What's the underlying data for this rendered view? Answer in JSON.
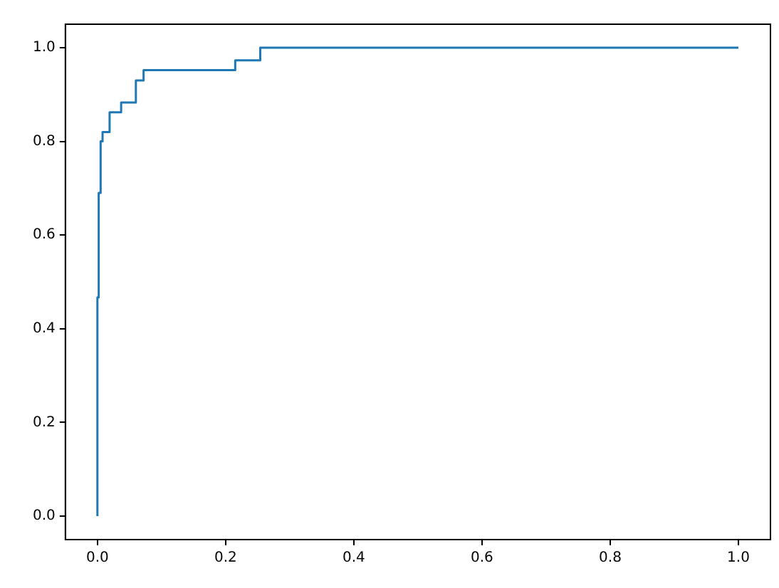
{
  "chart_data": {
    "type": "line",
    "x": [
      0,
      0,
      0.002,
      0.002,
      0.005,
      0.005,
      0.008,
      0.008,
      0.019,
      0.019,
      0.037,
      0.037,
      0.06,
      0.06,
      0.072,
      0.072,
      0.215,
      0.215,
      0.254,
      0.254,
      1
    ],
    "series": [
      {
        "color": "#1f77b4",
        "values": [
          0,
          0.467,
          0.467,
          0.69,
          0.69,
          0.8,
          0.8,
          0.82,
          0.82,
          0.862,
          0.862,
          0.883,
          0.883,
          0.93,
          0.93,
          0.952,
          0.952,
          0.973,
          0.973,
          1,
          1
        ]
      }
    ],
    "xlim": [
      -0.05,
      1.05
    ],
    "ylim": [
      -0.05,
      1.05
    ],
    "xticks": [
      {
        "value": 0,
        "label": "0.0"
      },
      {
        "value": 0.2,
        "label": "0.2"
      },
      {
        "value": 0.4,
        "label": "0.4"
      },
      {
        "value": 0.6,
        "label": "0.6"
      },
      {
        "value": 0.8,
        "label": "0.8"
      },
      {
        "value": 1,
        "label": "1.0"
      }
    ],
    "yticks": [
      {
        "value": 0,
        "label": "0.0"
      },
      {
        "value": 0.2,
        "label": "0.2"
      },
      {
        "value": 0.4,
        "label": "0.4"
      },
      {
        "value": 0.6,
        "label": "0.6"
      },
      {
        "value": 0.8,
        "label": "0.8"
      },
      {
        "value": 1,
        "label": "1.0"
      }
    ],
    "grid": false,
    "legend": false,
    "marker": "none",
    "line_style": "solid"
  }
}
